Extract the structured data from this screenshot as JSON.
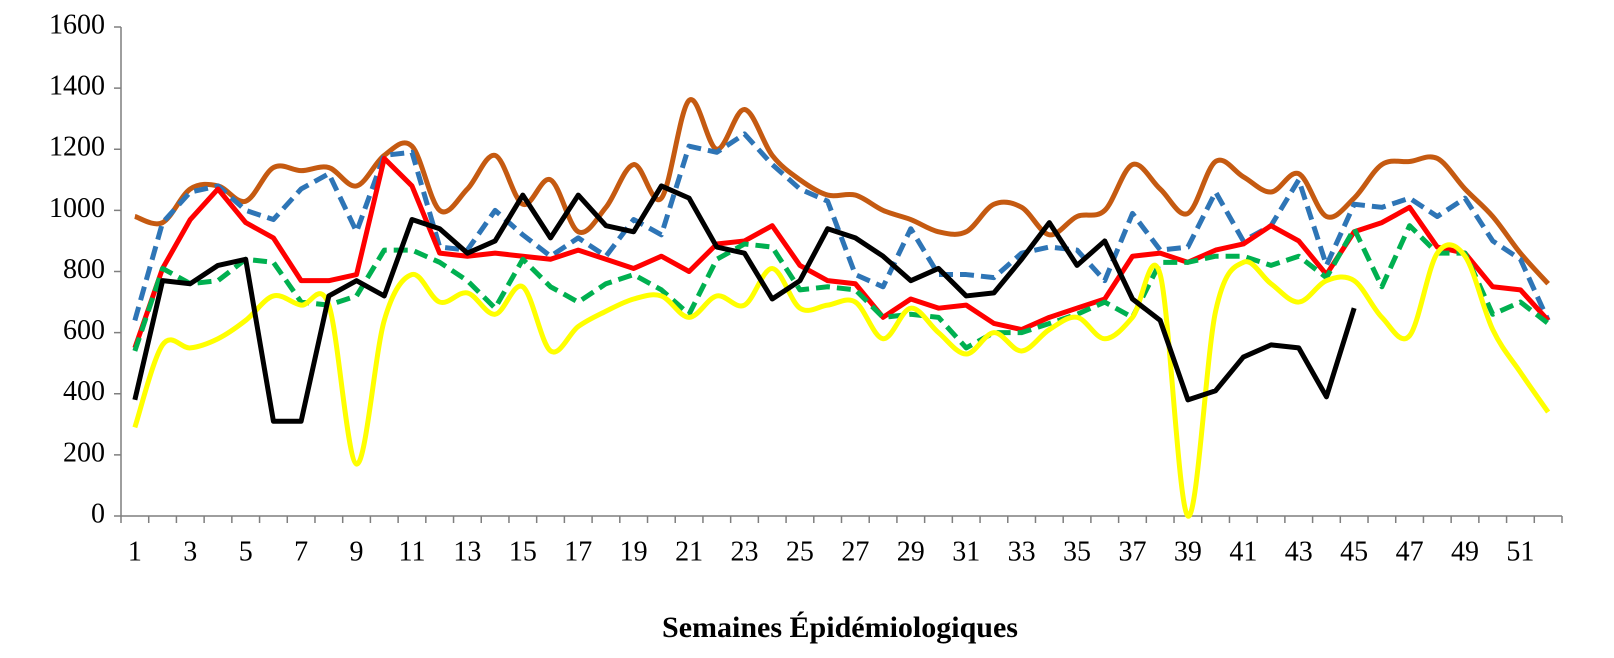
{
  "chart_data": {
    "type": "line",
    "x_label": "Semaines Épidémiologiques",
    "categories": [
      1,
      null,
      3,
      null,
      5,
      null,
      7,
      null,
      9,
      null,
      11,
      null,
      13,
      null,
      15,
      null,
      17,
      null,
      19,
      null,
      21,
      null,
      23,
      null,
      25,
      null,
      27,
      null,
      29,
      null,
      31,
      null,
      33,
      null,
      35,
      null,
      37,
      null,
      39,
      null,
      41,
      null,
      43,
      null,
      45,
      null,
      47,
      null,
      49,
      null,
      51,
      null
    ],
    "ylim": [
      0,
      1600
    ],
    "yticks": [
      0,
      200,
      400,
      600,
      800,
      1000,
      1200,
      1400,
      1600
    ],
    "grid": false,
    "series": [
      {
        "color": "#c55a11",
        "smooth": true,
        "dashed": false,
        "values": [
          980,
          960,
          1070,
          1080,
          1030,
          1140,
          1130,
          1140,
          1080,
          1180,
          1210,
          1000,
          1070,
          1180,
          1020,
          1100,
          930,
          1010,
          1150,
          1040,
          1360,
          1200,
          1330,
          1180,
          1100,
          1050,
          1050,
          1000,
          970,
          930,
          930,
          1020,
          1010,
          920,
          980,
          1000,
          1150,
          1070,
          990,
          1160,
          1110,
          1060,
          1120,
          980,
          1040,
          1150,
          1160,
          1170,
          1070,
          980,
          860,
          760
        ]
      },
      {
        "color": "#2e75b6",
        "smooth": false,
        "dashed": true,
        "values": [
          640,
          960,
          1060,
          1080,
          1000,
          970,
          1070,
          1120,
          930,
          1180,
          1190,
          880,
          870,
          1000,
          920,
          850,
          910,
          850,
          970,
          920,
          1210,
          1190,
          1250,
          1150,
          1070,
          1030,
          790,
          750,
          940,
          790,
          790,
          780,
          860,
          880,
          870,
          770,
          990,
          870,
          880,
          1060,
          900,
          950,
          1100,
          820,
          1020,
          1010,
          1040,
          980,
          1040,
          900,
          840,
          640
        ]
      },
      {
        "color": "#ff0000",
        "smooth": false,
        "dashed": false,
        "values": [
          550,
          810,
          970,
          1070,
          960,
          910,
          770,
          770,
          790,
          1170,
          1080,
          860,
          850,
          860,
          850,
          840,
          870,
          840,
          810,
          850,
          800,
          890,
          900,
          950,
          820,
          770,
          760,
          650,
          710,
          680,
          690,
          630,
          610,
          650,
          680,
          710,
          850,
          860,
          830,
          870,
          890,
          950,
          900,
          790,
          930,
          960,
          1010,
          880,
          860,
          750,
          740,
          640
        ]
      },
      {
        "color": "#00b050",
        "smooth": false,
        "dashed": true,
        "values": [
          540,
          810,
          760,
          770,
          840,
          830,
          700,
          690,
          720,
          870,
          870,
          830,
          770,
          680,
          840,
          750,
          700,
          760,
          790,
          740,
          660,
          840,
          890,
          880,
          740,
          750,
          740,
          650,
          660,
          650,
          550,
          600,
          600,
          630,
          660,
          700,
          650,
          830,
          830,
          850,
          850,
          820,
          850,
          780,
          940,
          750,
          950,
          860,
          860,
          660,
          700,
          630
        ]
      },
      {
        "color": "#ffff00",
        "smooth": true,
        "dashed": false,
        "values": [
          290,
          560,
          550,
          580,
          640,
          720,
          690,
          690,
          170,
          640,
          790,
          700,
          730,
          660,
          750,
          540,
          620,
          670,
          710,
          720,
          650,
          720,
          690,
          810,
          680,
          690,
          700,
          580,
          680,
          600,
          530,
          600,
          540,
          610,
          650,
          580,
          650,
          790,
          0,
          670,
          830,
          760,
          700,
          770,
          770,
          650,
          590,
          860,
          850,
          610,
          470,
          340
        ]
      },
      {
        "color": "#000000",
        "smooth": false,
        "dashed": false,
        "values": [
          380,
          770,
          760,
          820,
          840,
          310,
          310,
          720,
          770,
          720,
          970,
          940,
          860,
          900,
          1050,
          910,
          1050,
          950,
          930,
          1080,
          1040,
          880,
          860,
          710,
          770,
          940,
          910,
          850,
          770,
          810,
          720,
          730,
          840,
          960,
          820,
          900,
          710,
          640,
          380,
          410,
          520,
          560,
          550,
          390,
          680,
          null,
          null,
          null,
          null,
          null,
          null,
          null
        ]
      }
    ]
  }
}
